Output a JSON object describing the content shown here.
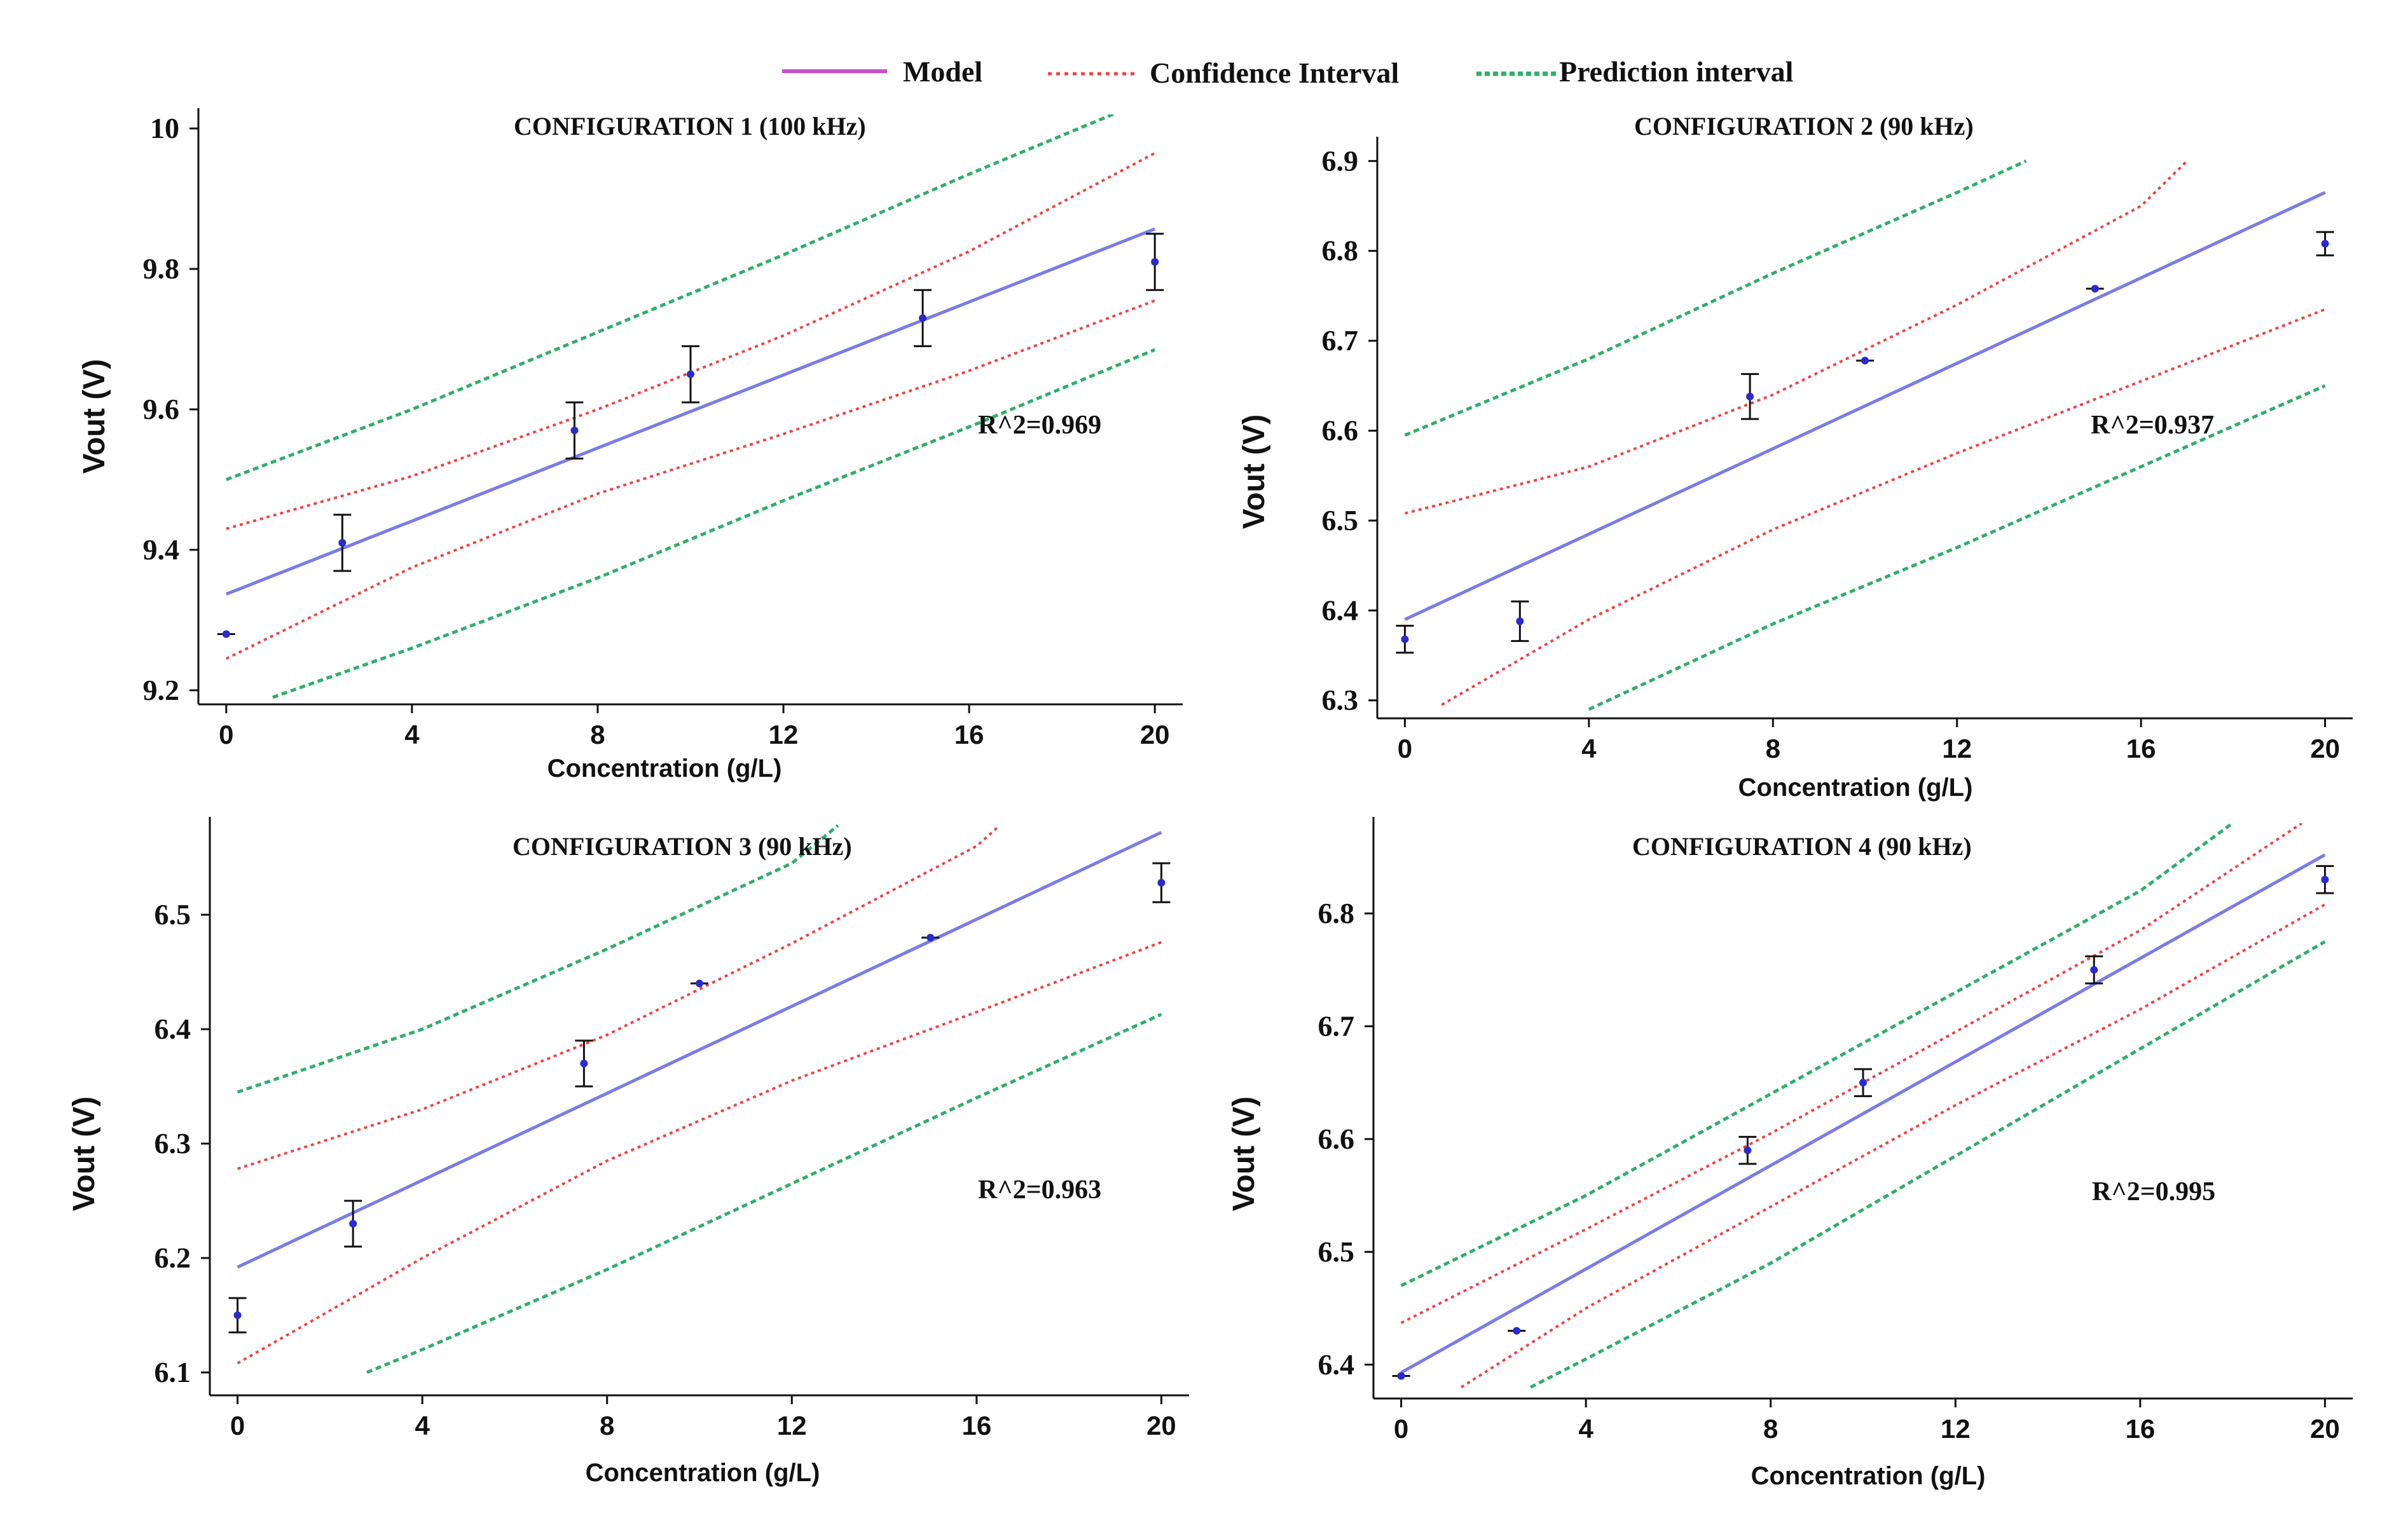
{
  "legend": {
    "model": "Model",
    "confidence": "Confidence Interval",
    "prediction": "Prediction interval"
  },
  "colors": {
    "model": "#7b7bea",
    "legend_model": "#c84fc8",
    "confidence": "#ee4444",
    "prediction": "#2fae6e",
    "points": "#2a2ad0",
    "axis": "#111111"
  },
  "chart_data": [
    {
      "type": "scatter",
      "title": "CONFIGURATION 1 (100 kHz)",
      "xlabel": "Concentration (g/L)",
      "ylabel": "Vout (V)",
      "xlim": [
        -0.6,
        20.6
      ],
      "ylim": [
        9.18,
        10.02
      ],
      "xticks": [
        0,
        4,
        8,
        12,
        16,
        20
      ],
      "yticks": [
        9.2,
        9.4,
        9.6,
        9.8,
        10
      ],
      "ytick_labels": [
        "9.2",
        "9.4",
        "9.6",
        "9.8",
        "10"
      ],
      "annotation": "R^2=0.969",
      "points": [
        {
          "x": 0,
          "y": 9.28,
          "err": 0.0
        },
        {
          "x": 2.5,
          "y": 9.41,
          "err": 0.04
        },
        {
          "x": 7.5,
          "y": 9.57,
          "err": 0.04
        },
        {
          "x": 10,
          "y": 9.65,
          "err": 0.04
        },
        {
          "x": 15,
          "y": 9.73,
          "err": 0.04
        },
        {
          "x": 20,
          "y": 9.81,
          "err": 0.04
        }
      ],
      "model": {
        "x": [
          0,
          20
        ],
        "y": [
          9.337,
          9.857
        ]
      },
      "confidence_upper": {
        "x": [
          0,
          4,
          8,
          12,
          16,
          20
        ],
        "y": [
          9.43,
          9.505,
          9.6,
          9.705,
          9.825,
          9.965
        ]
      },
      "confidence_lower": {
        "x": [
          0,
          4,
          8,
          12,
          16,
          20
        ],
        "y": [
          9.245,
          9.375,
          9.48,
          9.565,
          9.655,
          9.755
        ]
      },
      "prediction_upper": {
        "x": [
          0,
          4,
          8,
          12,
          16,
          20
        ],
        "y": [
          9.5,
          9.6,
          9.71,
          9.82,
          9.935,
          10.045
        ]
      },
      "prediction_lower": {
        "x": [
          1,
          4,
          8,
          12,
          16,
          20
        ],
        "y": [
          9.19,
          9.26,
          9.36,
          9.47,
          9.575,
          9.685
        ]
      }
    },
    {
      "type": "scatter",
      "title": "CONFIGURATION 2 (90 kHz)",
      "xlabel": "Concentration (g/L)",
      "ylabel": "Vout (V)",
      "xlim": [
        -0.6,
        20.6
      ],
      "ylim": [
        6.28,
        6.92
      ],
      "xticks": [
        0,
        4,
        8,
        12,
        16,
        20
      ],
      "yticks": [
        6.3,
        6.4,
        6.5,
        6.6,
        6.7,
        6.8,
        6.9
      ],
      "ytick_labels": [
        "6.3",
        "6.4",
        "6.5",
        "6.6",
        "6.7",
        "6.8",
        "6.9"
      ],
      "annotation": "R^2=0.937",
      "points": [
        {
          "x": 0,
          "y": 6.368,
          "err": 0.015
        },
        {
          "x": 2.5,
          "y": 6.388,
          "err": 0.022
        },
        {
          "x": 7.5,
          "y": 6.638,
          "err": 0.025
        },
        {
          "x": 10,
          "y": 6.678,
          "err": 0.0
        },
        {
          "x": 15,
          "y": 6.758,
          "err": 0.0
        },
        {
          "x": 20,
          "y": 6.808,
          "err": 0.013
        }
      ],
      "model": {
        "x": [
          0,
          20
        ],
        "y": [
          6.39,
          6.865
        ]
      },
      "confidence_upper": {
        "x": [
          0,
          4,
          8,
          12,
          16,
          17
        ],
        "y": [
          6.508,
          6.56,
          6.64,
          6.74,
          6.85,
          6.9
        ]
      },
      "confidence_lower": {
        "x": [
          0.8,
          4,
          8,
          12,
          16,
          20
        ],
        "y": [
          6.295,
          6.39,
          6.49,
          6.575,
          6.655,
          6.735
        ]
      },
      "prediction_upper": {
        "x": [
          0,
          4,
          8,
          12,
          13.5
        ],
        "y": [
          6.595,
          6.68,
          6.775,
          6.865,
          6.9
        ]
      },
      "prediction_lower": {
        "x": [
          4,
          8,
          12,
          16,
          20
        ],
        "y": [
          6.29,
          6.385,
          6.47,
          6.56,
          6.65
        ]
      }
    },
    {
      "type": "scatter",
      "title": "CONFIGURATION 3 (90 kHz)",
      "xlabel": "Concentration (g/L)",
      "ylabel": "Vout (V)",
      "xlim": [
        -0.6,
        20.6
      ],
      "ylim": [
        6.08,
        6.58
      ],
      "xticks": [
        0,
        4,
        8,
        12,
        16,
        20
      ],
      "yticks": [
        6.1,
        6.2,
        6.3,
        6.4,
        6.5
      ],
      "ytick_labels": [
        "6.1",
        "6.2",
        "6.3",
        "6.4",
        "6.5"
      ],
      "annotation": "R^2=0.963",
      "points": [
        {
          "x": 0,
          "y": 6.15,
          "err": 0.015
        },
        {
          "x": 2.5,
          "y": 6.23,
          "err": 0.02
        },
        {
          "x": 7.5,
          "y": 6.37,
          "err": 0.02
        },
        {
          "x": 10,
          "y": 6.44,
          "err": 0.0
        },
        {
          "x": 15,
          "y": 6.48,
          "err": 0.0
        },
        {
          "x": 20,
          "y": 6.528,
          "err": 0.017
        }
      ],
      "model": {
        "x": [
          0,
          20
        ],
        "y": [
          6.192,
          6.572
        ]
      },
      "confidence_upper": {
        "x": [
          0,
          4,
          8,
          12,
          16,
          16.5
        ],
        "y": [
          6.278,
          6.33,
          6.395,
          6.475,
          6.56,
          6.578
        ]
      },
      "confidence_lower": {
        "x": [
          0,
          4,
          8,
          12,
          16,
          20
        ],
        "y": [
          6.108,
          6.2,
          6.285,
          6.355,
          6.415,
          6.476
        ]
      },
      "prediction_upper": {
        "x": [
          0,
          4,
          8,
          12,
          13
        ],
        "y": [
          6.345,
          6.4,
          6.47,
          6.545,
          6.578
        ]
      },
      "prediction_lower": {
        "x": [
          2.8,
          4,
          8,
          12,
          16,
          20
        ],
        "y": [
          6.1,
          6.12,
          6.19,
          6.265,
          6.34,
          6.413
        ]
      }
    },
    {
      "type": "scatter",
      "title": "CONFIGURATION 4 (90 kHz)",
      "xlabel": "Concentration (g/L)",
      "ylabel": "Vout (V)",
      "xlim": [
        -0.6,
        20.6
      ],
      "ylim": [
        6.37,
        6.88
      ],
      "xticks": [
        0,
        4,
        8,
        12,
        16,
        20
      ],
      "yticks": [
        6.4,
        6.5,
        6.6,
        6.7,
        6.8
      ],
      "ytick_labels": [
        "6.4",
        "6.5",
        "6.6",
        "6.7",
        "6.8"
      ],
      "annotation": "R^2=0.995",
      "points": [
        {
          "x": 0,
          "y": 6.39,
          "err": 0.0
        },
        {
          "x": 2.5,
          "y": 6.43,
          "err": 0.0
        },
        {
          "x": 7.5,
          "y": 6.59,
          "err": 0.012
        },
        {
          "x": 10,
          "y": 6.65,
          "err": 0.012
        },
        {
          "x": 15,
          "y": 6.75,
          "err": 0.012
        },
        {
          "x": 20,
          "y": 6.83,
          "err": 0.012
        }
      ],
      "model": {
        "x": [
          0,
          20
        ],
        "y": [
          6.393,
          6.852
        ]
      },
      "confidence_upper": {
        "x": [
          0,
          4,
          8,
          12,
          16,
          19.5
        ],
        "y": [
          6.437,
          6.52,
          6.605,
          6.695,
          6.785,
          6.88
        ]
      },
      "confidence_lower": {
        "x": [
          1.3,
          4,
          8,
          12,
          16,
          20
        ],
        "y": [
          6.38,
          6.45,
          6.54,
          6.63,
          6.715,
          6.808
        ]
      },
      "prediction_upper": {
        "x": [
          0,
          4,
          8,
          12,
          16,
          18
        ],
        "y": [
          6.47,
          6.55,
          6.64,
          6.73,
          6.82,
          6.88
        ]
      },
      "prediction_lower": {
        "x": [
          2.8,
          4,
          8,
          12,
          16,
          20
        ],
        "y": [
          6.38,
          6.405,
          6.49,
          6.585,
          6.68,
          6.775
        ]
      }
    }
  ]
}
